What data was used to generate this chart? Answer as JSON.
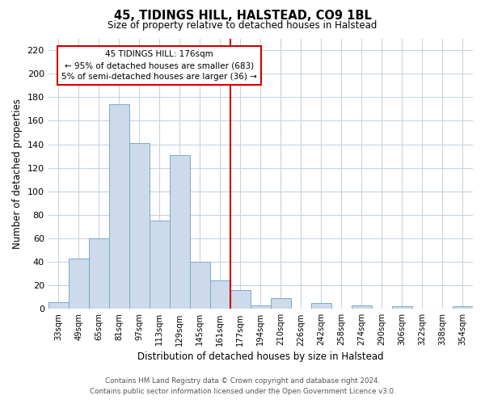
{
  "title": "45, TIDINGS HILL, HALSTEAD, CO9 1BL",
  "subtitle": "Size of property relative to detached houses in Halstead",
  "xlabel": "Distribution of detached houses by size in Halstead",
  "ylabel": "Number of detached properties",
  "bar_color": "#ccdaeb",
  "bar_edge_color": "#7aaac8",
  "bin_labels": [
    "33sqm",
    "49sqm",
    "65sqm",
    "81sqm",
    "97sqm",
    "113sqm",
    "129sqm",
    "145sqm",
    "161sqm",
    "177sqm",
    "194sqm",
    "210sqm",
    "226sqm",
    "242sqm",
    "258sqm",
    "274sqm",
    "290sqm",
    "306sqm",
    "322sqm",
    "338sqm",
    "354sqm"
  ],
  "bar_heights": [
    6,
    43,
    60,
    174,
    141,
    75,
    131,
    40,
    24,
    16,
    3,
    9,
    0,
    5,
    0,
    3,
    0,
    2,
    0,
    0,
    2
  ],
  "ylim": [
    0,
    230
  ],
  "yticks": [
    0,
    20,
    40,
    60,
    80,
    100,
    120,
    140,
    160,
    180,
    200,
    220
  ],
  "annotation_text": "45 TIDINGS HILL: 176sqm\n← 95% of detached houses are smaller (683)\n5% of semi-detached houses are larger (36) →",
  "footer_line1": "Contains HM Land Registry data © Crown copyright and database right 2024.",
  "footer_line2": "Contains public sector information licensed under the Open Government Licence v3.0.",
  "background_color": "#ffffff",
  "grid_color": "#c8d4e0",
  "vline_color": "#cc0000",
  "vline_bin_index": 8.5
}
